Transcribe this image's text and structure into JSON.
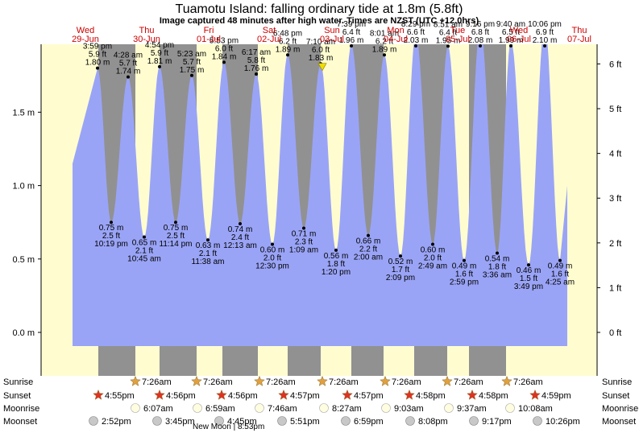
{
  "chart_data": {
    "type": "area",
    "title": "Tuamotu Island: falling  ordinary tide at 1.8m (5.8ft)",
    "subtitle": "Image captured 48 minutes after high water. Times are NZST (UTC +12.0hrs)",
    "left_axis": {
      "unit": "m",
      "ticks": [
        "0.0 m",
        "0.5 m",
        "1.0 m",
        "1.5 m"
      ],
      "tick_values": [
        0,
        0.5,
        1.0,
        1.5
      ]
    },
    "right_axis": {
      "unit": "ft",
      "ticks": [
        "0 ft",
        "1 ft",
        "2 ft",
        "3 ft",
        "4 ft",
        "5 ft",
        "6 ft"
      ],
      "tick_values": [
        0,
        1,
        2,
        3,
        4,
        5,
        6
      ]
    },
    "days": [
      {
        "dow": "Wed",
        "date": "29-Jun"
      },
      {
        "dow": "Thu",
        "date": "30-Jun"
      },
      {
        "dow": "Fri",
        "date": "01-Jul"
      },
      {
        "dow": "Sat",
        "date": "02-Jul"
      },
      {
        "dow": "Sun",
        "date": "03-Jul"
      },
      {
        "dow": "Mon",
        "date": "04-Jul"
      },
      {
        "dow": "Tue",
        "date": "05-Jul"
      },
      {
        "dow": "Wed",
        "date": "06-Jul"
      },
      {
        "dow": "Thu",
        "date": "07-Jul"
      }
    ],
    "tides": [
      {
        "time": "3:59 pm",
        "ft": "5.9 ft",
        "m": "1.80 m",
        "h": 1.8,
        "type": "high"
      },
      {
        "time": "10:19 pm",
        "ft": "2.5 ft",
        "m": "0.75 m",
        "h": 0.75,
        "type": "low"
      },
      {
        "time": "4:28 am",
        "ft": "5.7 ft",
        "m": "1.74 m",
        "h": 1.74,
        "type": "high"
      },
      {
        "time": "10:45 am",
        "ft": "2.1 ft",
        "m": "0.65 m",
        "h": 0.65,
        "type": "low"
      },
      {
        "time": "4:54 pm",
        "ft": "5.9 ft",
        "m": "1.81 m",
        "h": 1.81,
        "type": "high"
      },
      {
        "time": "11:14 pm",
        "ft": "2.5 ft",
        "m": "0.75 m",
        "h": 0.75,
        "type": "low"
      },
      {
        "time": "5:23 am",
        "ft": "5.7 ft",
        "m": "1.75 m",
        "h": 1.75,
        "type": "high"
      },
      {
        "time": "11:38 am",
        "ft": "2.1 ft",
        "m": "0.63 m",
        "h": 0.63,
        "type": "low"
      },
      {
        "time": "5:53 pm",
        "ft": "6.0 ft",
        "m": "1.84 m",
        "h": 1.84,
        "type": "high"
      },
      {
        "time": "12:13 am",
        "ft": "2.4 ft",
        "m": "0.74 m",
        "h": 0.74,
        "type": "low"
      },
      {
        "time": "6:17 am",
        "ft": "5.8 ft",
        "m": "1.76 m",
        "h": 1.76,
        "type": "high"
      },
      {
        "time": "12:30 pm",
        "ft": "2.0 ft",
        "m": "0.60 m",
        "h": 0.6,
        "type": "low"
      },
      {
        "time": "6:48 pm",
        "ft": "6.2 ft",
        "m": "1.89 m",
        "h": 1.89,
        "type": "high"
      },
      {
        "time": "1:09 am",
        "ft": "2.3 ft",
        "m": "0.71 m",
        "h": 0.71,
        "type": "low"
      },
      {
        "time": "7:10 am",
        "ft": "6.0 ft",
        "m": "1.83 m",
        "h": 1.83,
        "type": "high"
      },
      {
        "time": "1:20 pm",
        "ft": "1.8 ft",
        "m": "0.56 m",
        "h": 0.56,
        "type": "low"
      },
      {
        "time": "7:39 pm",
        "ft": "6.4 ft",
        "m": "1.96 m",
        "h": 1.96,
        "type": "high"
      },
      {
        "time": "2:00 am",
        "ft": "2.2 ft",
        "m": "0.66 m",
        "h": 0.66,
        "type": "low"
      },
      {
        "time": "8:01 am",
        "ft": "6.2 ft",
        "m": "1.89 m",
        "h": 1.89,
        "type": "high"
      },
      {
        "time": "2:09 pm",
        "ft": "1.7 ft",
        "m": "0.52 m",
        "h": 0.52,
        "type": "low"
      },
      {
        "time": "8:29 pm",
        "ft": "6.6 ft",
        "m": "2.03 m",
        "h": 2.03,
        "type": "high"
      },
      {
        "time": "2:49 am",
        "ft": "2.0 ft",
        "m": "0.60 m",
        "h": 0.6,
        "type": "low"
      },
      {
        "time": "8:51 am",
        "ft": "6.4 ft",
        "m": "1.95 m",
        "h": 1.95,
        "type": "high"
      },
      {
        "time": "2:59 pm",
        "ft": "1.6 ft",
        "m": "0.49 m",
        "h": 0.49,
        "type": "low"
      },
      {
        "time": "9:16 pm",
        "ft": "6.8 ft",
        "m": "2.08 m",
        "h": 2.08,
        "type": "high"
      },
      {
        "time": "3:36 am",
        "ft": "1.8 ft",
        "m": "0.54 m",
        "h": 0.54,
        "type": "low"
      },
      {
        "time": "9:40 am",
        "ft": "6.5 ft",
        "m": "1.99 m",
        "h": 1.99,
        "type": "high"
      },
      {
        "time": "3:49 pm",
        "ft": "1.5 ft",
        "m": "0.46 m",
        "h": 0.46,
        "type": "low"
      },
      {
        "time": "10:06 pm",
        "ft": "6.9 ft",
        "m": "2.10 m",
        "h": 2.1,
        "type": "high"
      },
      {
        "time": "4:25 am",
        "ft": "1.6 ft",
        "m": "0.49 m",
        "h": 0.49,
        "type": "low"
      }
    ],
    "current": {
      "level_m": 1.8,
      "level_ft": 5.8,
      "state": "falling"
    },
    "astro": {
      "labels": {
        "sunrise": "Sunrise",
        "sunset": "Sunset",
        "moonrise": "Moonrise",
        "moonset": "Moonset"
      },
      "sunrise": [
        "7:26am",
        "7:26am",
        "7:26am",
        "7:26am",
        "7:26am",
        "7:26am",
        "7:26am"
      ],
      "sunset": [
        "4:55pm",
        "4:56pm",
        "4:56pm",
        "4:57pm",
        "4:57pm",
        "4:58pm",
        "4:58pm",
        "4:59pm"
      ],
      "moonrise": [
        "6:07am",
        "6:59am",
        "7:46am",
        "8:27am",
        "9:03am",
        "9:37am",
        "10:08am"
      ],
      "moonset": [
        "2:52pm",
        "3:45pm",
        "4:45pm",
        "5:51pm",
        "6:59pm",
        "8:08pm",
        "9:17pm",
        "10:26pm"
      ],
      "new_moon": "New Moon | 8:53pm"
    }
  },
  "colors": {
    "water": "#9aa4f6",
    "night": "#919191",
    "day": "#fffdd0",
    "title": "#000000",
    "day_label": "#cc0000",
    "sun_star": "#e0a040",
    "sunset_star": "#dd3322",
    "moon_disc": "#fffde0",
    "moonset_disc": "#c8c8c8"
  }
}
